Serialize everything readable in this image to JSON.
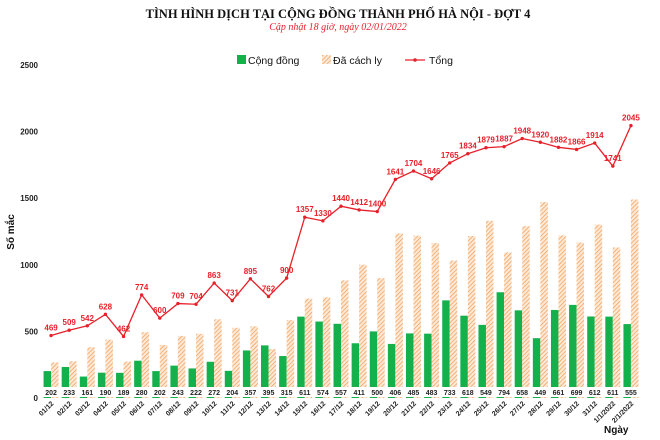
{
  "chart_data": {
    "type": "bar",
    "title": "TÌNH HÌNH DỊCH TẠI CỘNG ĐỒNG THÀNH PHỐ HÀ NỘI - ĐỢT 4",
    "subtitle": "Cập nhật 18 giờ, ngày 02/01/2022",
    "xlabel": "Ngày",
    "ylabel": "Số mắc",
    "ylim": [
      0,
      2500
    ],
    "yticks": [
      0,
      500,
      1000,
      1500,
      2000,
      2500
    ],
    "grid": false,
    "legend_position": "top",
    "categories": [
      "01/12",
      "02/12",
      "03/12",
      "04/12",
      "05/12",
      "06/12",
      "07/12",
      "08/12",
      "09/12",
      "10/12",
      "11/12",
      "12/12",
      "13/12",
      "14/12",
      "15/12",
      "16/12",
      "17/12",
      "18/12",
      "19/12",
      "20/12",
      "21/12",
      "22/12",
      "23/12",
      "24/12",
      "25/12",
      "26/12",
      "27/12",
      "28/12",
      "29/12",
      "30/12",
      "31/12",
      "1/1/2022",
      "2/1/2022"
    ],
    "series": [
      {
        "name": "Cộng đồng",
        "type": "bar",
        "color": "#13b04b",
        "values": [
          202,
          233,
          161,
          190,
          189,
          280,
          202,
          243,
          222,
          272,
          204,
          357,
          395,
          315,
          611,
          574,
          557,
          411,
          500,
          406,
          485,
          483,
          733,
          618,
          549,
          794,
          658,
          449,
          661,
          699,
          612,
          611,
          555
        ]
      },
      {
        "name": "Đã cách ly",
        "type": "bar",
        "color": "#f4a460",
        "pattern": "hatched",
        "values": [
          267,
          276,
          381,
          438,
          273,
          494,
          398,
          466,
          482,
          591,
          527,
          538,
          367,
          585,
          746,
          756,
          883,
          1001,
          900,
          1235,
          1219,
          1163,
          1032,
          1216,
          1330,
          1093,
          1290,
          1471,
          1221,
          1167,
          1302,
          1130,
          1490
        ]
      },
      {
        "name": "Tổng",
        "type": "line",
        "color": "#e8202a",
        "values": [
          469,
          509,
          542,
          628,
          462,
          774,
          600,
          709,
          704,
          863,
          731,
          895,
          762,
          900,
          1357,
          1330,
          1440,
          1412,
          1400,
          1641,
          1704,
          1646,
          1765,
          1834,
          1879,
          1887,
          1948,
          1920,
          1882,
          1866,
          1914,
          1741,
          2045
        ]
      }
    ]
  }
}
